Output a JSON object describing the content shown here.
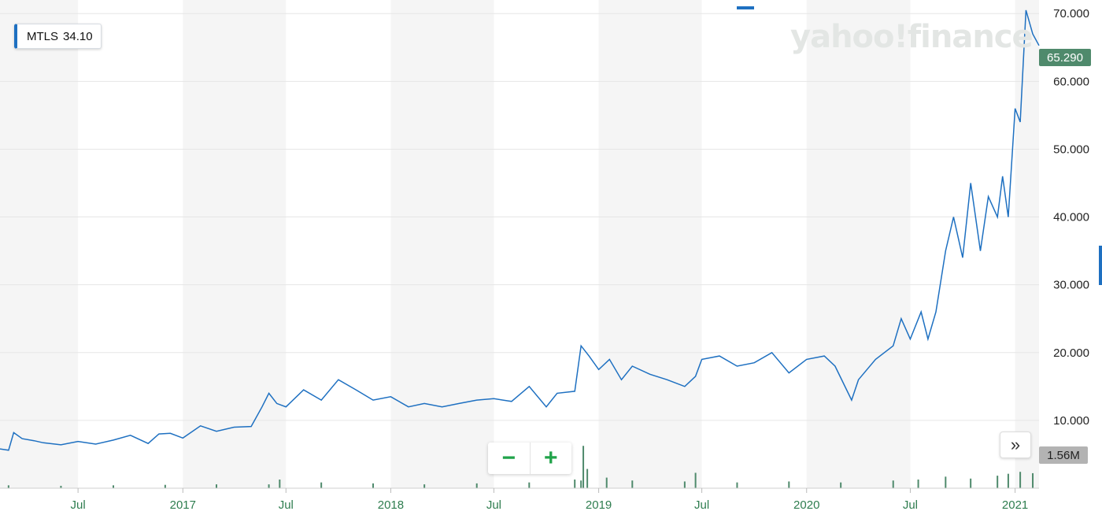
{
  "ticker": {
    "symbol": "MTLS",
    "value": "34.10"
  },
  "watermark": "yahoo!finance",
  "price_label": "65.290",
  "volume_label": "1.56M",
  "zoom": {
    "minus": "−",
    "plus": "+"
  },
  "expand_icon": "»",
  "colors": {
    "line": "#1e70c1",
    "volume": "#4f8a6c",
    "band": "#f5f5f5",
    "grid": "#e6e6e6"
  },
  "chart_data": {
    "type": "line",
    "ylim": [
      0,
      72
    ],
    "y_ticks": [
      "70.000",
      "60.000",
      "50.000",
      "40.000",
      "30.000",
      "20.000",
      "10.000"
    ],
    "y_tick_values": [
      70,
      60,
      50,
      40,
      30,
      20,
      10
    ],
    "x_ticks": [
      "Jul",
      "2017",
      "Jul",
      "2018",
      "Jul",
      "2019",
      "Jul",
      "2020",
      "Jul",
      "2021"
    ],
    "x_tick_dates": [
      "2016-07-01",
      "2017-01-01",
      "2017-07-01",
      "2018-01-01",
      "2018-07-01",
      "2019-01-01",
      "2019-07-01",
      "2020-01-01",
      "2020-07-01",
      "2021-01-01"
    ],
    "x_range": [
      "2016-02-15",
      "2021-02-12"
    ],
    "series": [
      {
        "dates": [
          "2016-02-15",
          "2016-03-01",
          "2016-03-10",
          "2016-03-25",
          "2016-04-15",
          "2016-05-01",
          "2016-06-01",
          "2016-07-01",
          "2016-08-01",
          "2016-09-01",
          "2016-10-01",
          "2016-11-01",
          "2016-11-20",
          "2016-12-10",
          "2017-01-01",
          "2017-02-01",
          "2017-03-01",
          "2017-04-01",
          "2017-05-01",
          "2017-05-20",
          "2017-06-01",
          "2017-06-15",
          "2017-07-01",
          "2017-08-01",
          "2017-09-01",
          "2017-10-01",
          "2017-11-01",
          "2017-12-01",
          "2018-01-01",
          "2018-02-01",
          "2018-03-01",
          "2018-04-01",
          "2018-05-01",
          "2018-06-01",
          "2018-07-01",
          "2018-08-01",
          "2018-09-01",
          "2018-10-01",
          "2018-10-20",
          "2018-11-20",
          "2018-12-01",
          "2018-12-15",
          "2019-01-01",
          "2019-01-20",
          "2019-02-10",
          "2019-03-01",
          "2019-04-01",
          "2019-05-01",
          "2019-06-01",
          "2019-06-20",
          "2019-07-01",
          "2019-08-01",
          "2019-09-01",
          "2019-10-01",
          "2019-11-01",
          "2019-12-01",
          "2020-01-01",
          "2020-02-01",
          "2020-02-20",
          "2020-03-20",
          "2020-04-01",
          "2020-05-01",
          "2020-06-01",
          "2020-06-15",
          "2020-07-01",
          "2020-07-20",
          "2020-08-01",
          "2020-08-15",
          "2020-09-01",
          "2020-09-15",
          "2020-10-01",
          "2020-10-15",
          "2020-11-01",
          "2020-11-15",
          "2020-12-01",
          "2020-12-10",
          "2020-12-20",
          "2021-01-01",
          "2021-01-10",
          "2021-01-20",
          "2021-02-01",
          "2021-02-12"
        ],
        "values": [
          5.8,
          5.6,
          8.2,
          7.3,
          7.0,
          6.7,
          6.4,
          6.9,
          6.5,
          7.1,
          7.8,
          6.6,
          8.0,
          8.1,
          7.4,
          9.2,
          8.4,
          9.0,
          9.1,
          12.0,
          14.0,
          12.5,
          12.0,
          14.5,
          13.0,
          16.0,
          14.5,
          13.0,
          13.5,
          12.0,
          12.5,
          12.0,
          12.5,
          13.0,
          13.2,
          12.8,
          15.0,
          12.0,
          14.0,
          14.3,
          21.0,
          19.5,
          17.5,
          19.0,
          16.0,
          18.0,
          16.8,
          16.0,
          15.0,
          16.5,
          19.0,
          19.5,
          18.0,
          18.5,
          20.0,
          17.0,
          19.0,
          19.5,
          18.0,
          13.0,
          16.0,
          19.0,
          21.0,
          25.0,
          22.0,
          26.0,
          22.0,
          26.0,
          35.0,
          40.0,
          34.0,
          45.0,
          35.0,
          43.0,
          40.0,
          46.0,
          40.0,
          56.0,
          54.0,
          70.5,
          67.0,
          65.29
        ]
      }
    ],
    "volume": {
      "unit": "M",
      "max": 4.5,
      "dates": [
        "2016-03-01",
        "2016-06-01",
        "2016-09-01",
        "2016-12-01",
        "2017-03-01",
        "2017-06-01",
        "2017-06-20",
        "2017-09-01",
        "2017-12-01",
        "2018-03-01",
        "2018-06-01",
        "2018-09-01",
        "2018-11-20",
        "2018-12-01",
        "2018-12-05",
        "2018-12-12",
        "2019-01-15",
        "2019-03-01",
        "2019-06-01",
        "2019-06-20",
        "2019-09-01",
        "2019-12-01",
        "2020-03-01",
        "2020-06-01",
        "2020-07-15",
        "2020-09-01",
        "2020-10-15",
        "2020-12-01",
        "2020-12-20",
        "2021-01-10",
        "2021-02-01"
      ],
      "values": [
        0.3,
        0.25,
        0.3,
        0.35,
        0.4,
        0.4,
        0.9,
        0.6,
        0.5,
        0.4,
        0.5,
        0.6,
        0.9,
        0.8,
        4.4,
        2.0,
        1.1,
        0.8,
        0.7,
        1.6,
        0.6,
        0.7,
        0.6,
        0.8,
        0.9,
        1.2,
        1.0,
        1.3,
        1.5,
        1.7,
        1.56
      ]
    }
  }
}
